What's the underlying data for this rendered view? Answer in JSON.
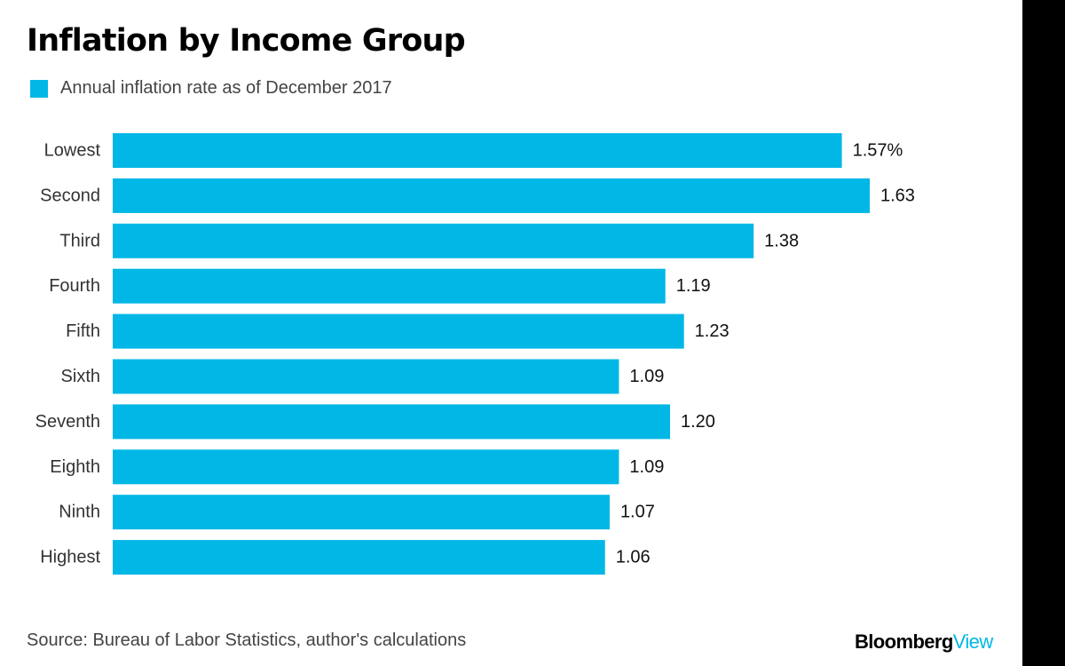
{
  "page": {
    "title": "Inflation by Income Group",
    "source": "Source: Bureau of Labor Statistics, author's calculations",
    "brand": {
      "part1": "Bloomberg",
      "part2": "View",
      "accent_color": "#00b7e6"
    }
  },
  "chart_data": {
    "type": "bar",
    "orientation": "horizontal",
    "title": "Inflation by Income Group",
    "categories": [
      "Lowest",
      "Second",
      "Third",
      "Fourth",
      "Fifth",
      "Sixth",
      "Seventh",
      "Eighth",
      "Ninth",
      "Highest"
    ],
    "series": [
      {
        "name": "Annual inflation rate as of December 2017",
        "values": [
          1.57,
          1.63,
          1.38,
          1.19,
          1.23,
          1.09,
          1.2,
          1.09,
          1.07,
          1.06
        ],
        "color": "#00b7e6"
      }
    ],
    "data_labels": [
      "1.57%",
      "1.63",
      "1.38",
      "1.19",
      "1.23",
      "1.09",
      "1.20",
      "1.09",
      "1.07",
      "1.06"
    ],
    "xlim": [
      0,
      1.63
    ],
    "grid": false,
    "legend_position": "top-left",
    "xlabel": "",
    "ylabel": ""
  }
}
